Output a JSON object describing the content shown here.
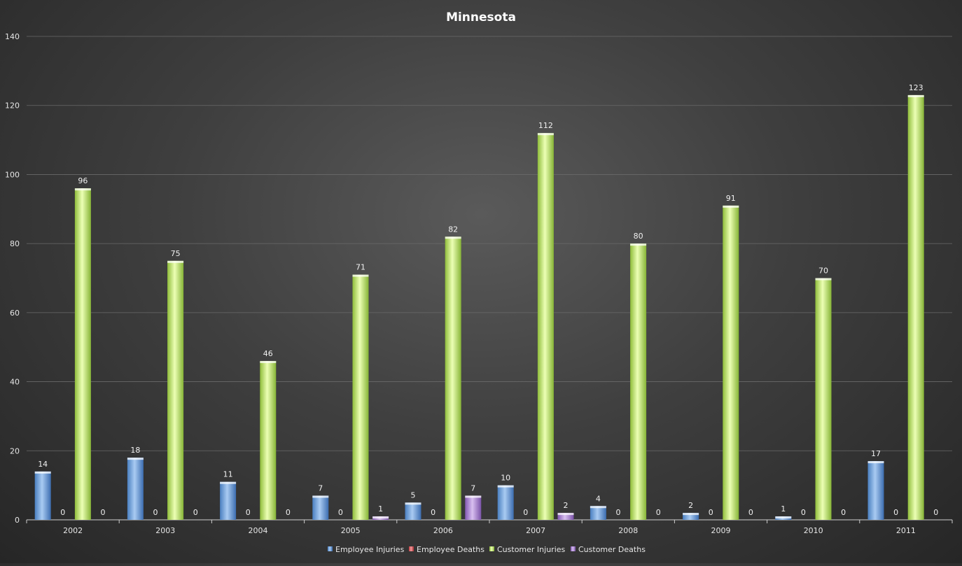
{
  "chart_data": {
    "type": "bar",
    "title": "Minnesota",
    "xlabel": "",
    "ylabel": "",
    "categories": [
      "2002",
      "2003",
      "2004",
      "2005",
      "2006",
      "2007",
      "2008",
      "2009",
      "2010",
      "2011"
    ],
    "ylim": [
      0,
      140
    ],
    "yticks": [
      0,
      20,
      40,
      60,
      80,
      100,
      120,
      140
    ],
    "grid": true,
    "legend_position": "bottom",
    "series": [
      {
        "name": "Employee Injuries",
        "color": "#5b9bd5",
        "values": [
          14,
          18,
          11,
          7,
          5,
          10,
          4,
          2,
          1,
          17
        ]
      },
      {
        "name": "Employee Deaths",
        "color": "#e0474c",
        "values": [
          0,
          0,
          0,
          0,
          0,
          0,
          0,
          0,
          0,
          0
        ]
      },
      {
        "name": "Customer Injuries",
        "color": "#a9d454",
        "values": [
          96,
          75,
          46,
          71,
          82,
          112,
          80,
          91,
          70,
          123
        ]
      },
      {
        "name": "Customer Deaths",
        "color": "#9b6fc6",
        "values": [
          0,
          0,
          0,
          1,
          7,
          2,
          0,
          0,
          0,
          0
        ]
      }
    ]
  }
}
